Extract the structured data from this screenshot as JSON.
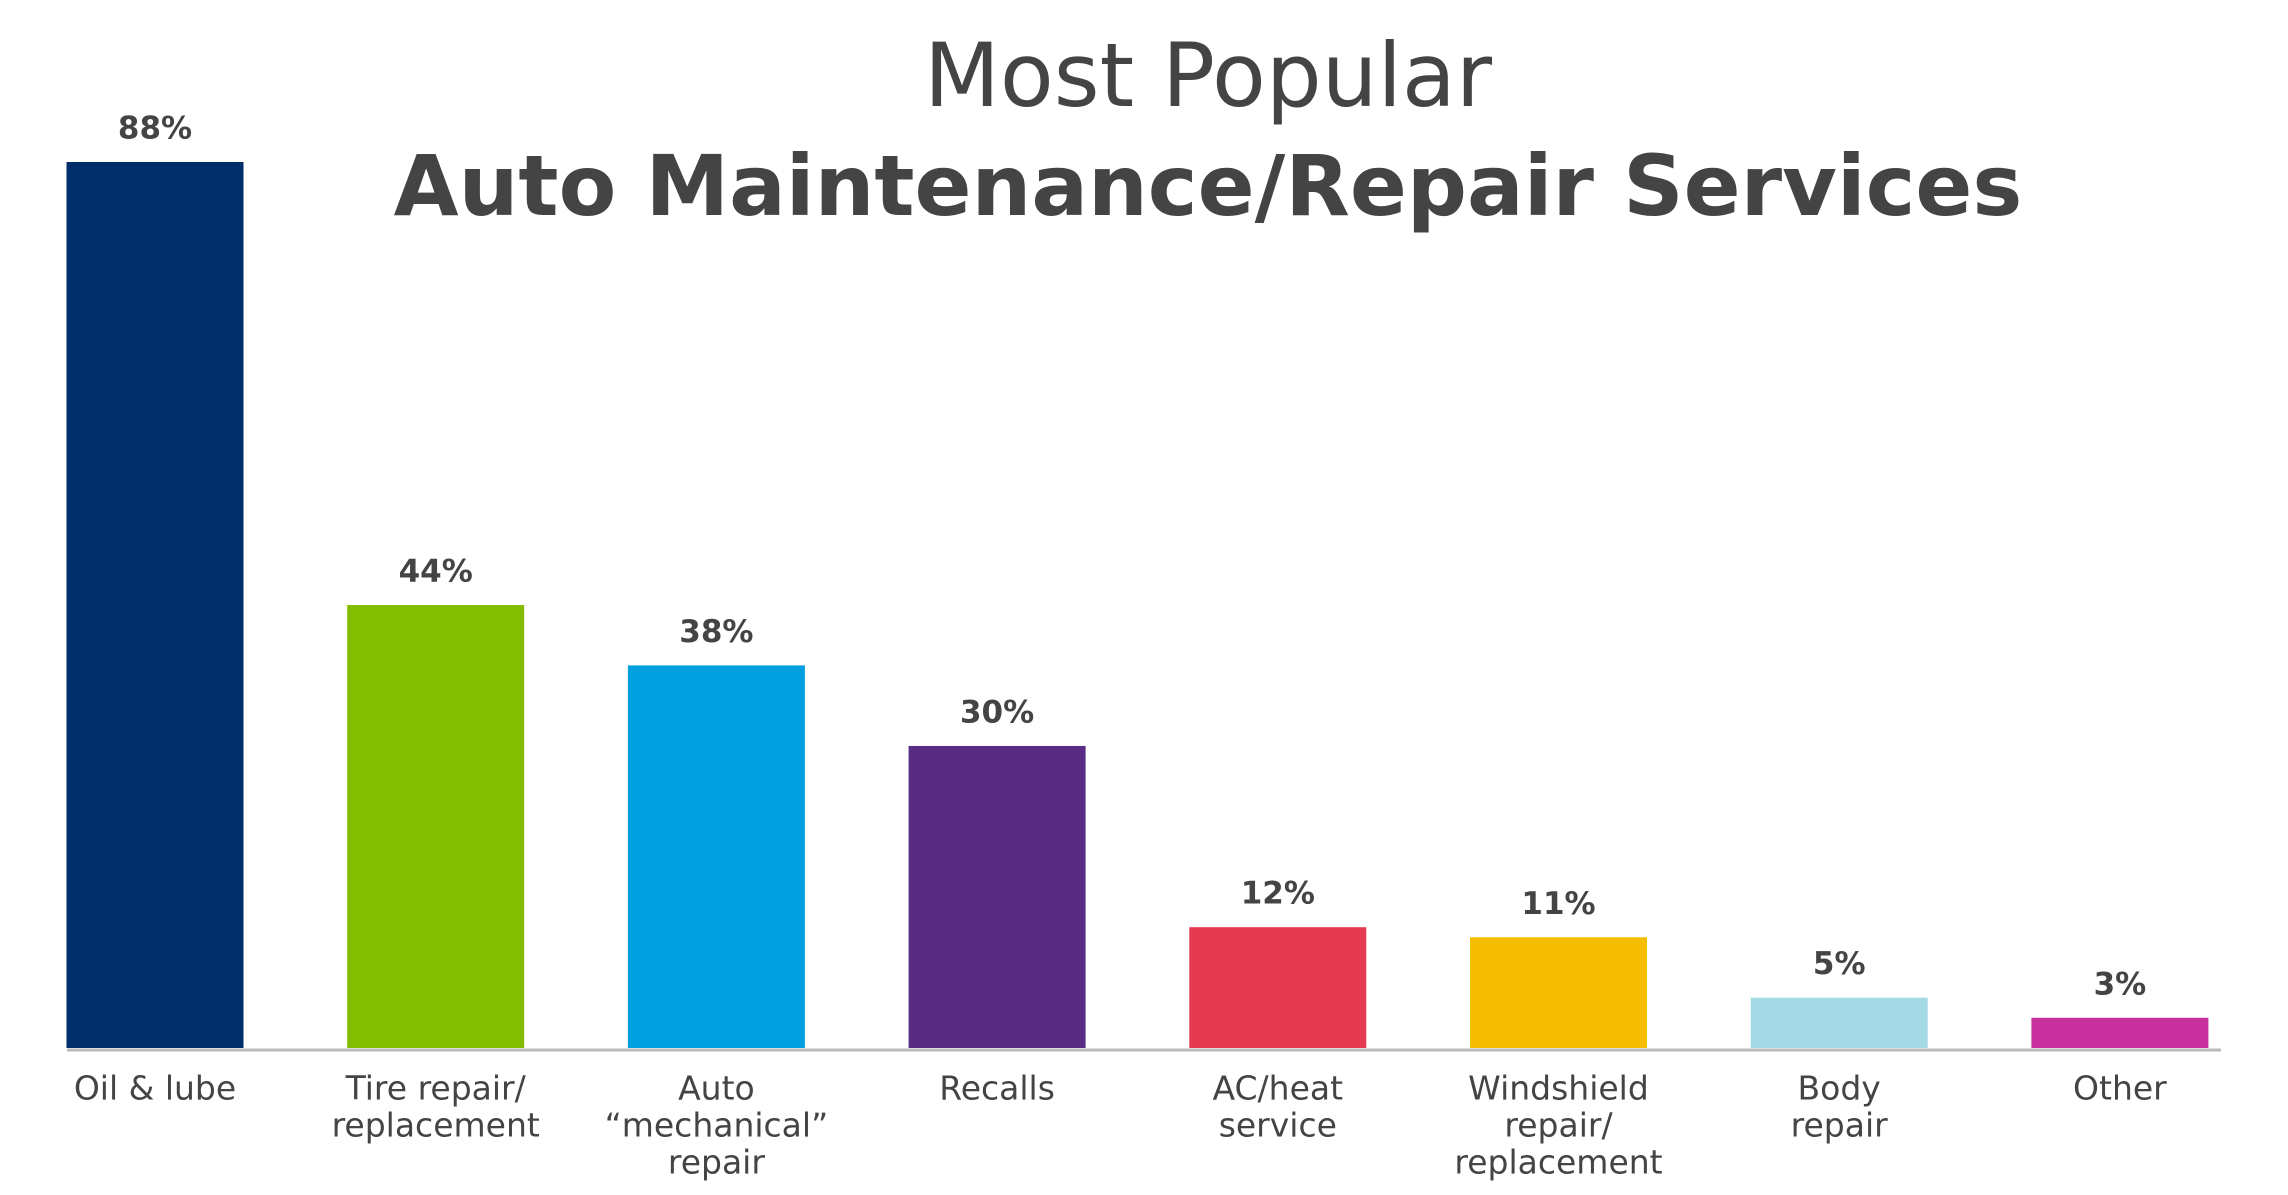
{
  "chart_data": {
    "type": "bar",
    "title": "Most Popular",
    "subtitle": "Auto Maintenance/Repair Services",
    "categories": [
      [
        "Oil & lube"
      ],
      [
        "Tire repair/",
        "replacement"
      ],
      [
        "Auto",
        "“mechanical”",
        "repair"
      ],
      [
        "Recalls"
      ],
      [
        "AC/heat",
        "service"
      ],
      [
        "Windshield",
        "repair/",
        "replacement"
      ],
      [
        "Body",
        "repair"
      ],
      [
        "Other"
      ]
    ],
    "values": [
      88,
      44,
      38,
      30,
      12,
      11,
      5,
      3
    ],
    "value_labels": [
      "88%",
      "44%",
      "38%",
      "30%",
      "12%",
      "11%",
      "5%",
      "3%"
    ],
    "colors": [
      "#002e6a",
      "#84bd00",
      "#009fdf",
      "#582c83",
      "#e53a4f",
      "#f6be00",
      "#a4d9e6",
      "#c9309e"
    ]
  }
}
